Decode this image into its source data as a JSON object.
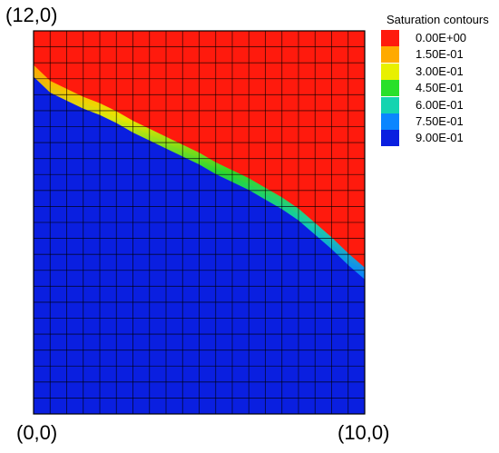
{
  "corner_labels": {
    "top_left": "(12,0)",
    "bottom_left": "(0,0)",
    "bottom_right": "(10,0)"
  },
  "legend": {
    "title": "Saturation contours",
    "entries": [
      {
        "label": "0.00E+00",
        "color": "#ff1a0d"
      },
      {
        "label": "1.50E-01",
        "color": "#ffaa00"
      },
      {
        "label": "3.00E-01",
        "color": "#e8f000"
      },
      {
        "label": "4.50E-01",
        "color": "#29e02a"
      },
      {
        "label": "6.00E-01",
        "color": "#13d4b0"
      },
      {
        "label": "7.50E-01",
        "color": "#0b86ff"
      },
      {
        "label": "9.00E-01",
        "color": "#0a1fe0"
      }
    ]
  },
  "chart_data": {
    "type": "heatmap",
    "xlim": [
      0,
      10
    ],
    "ylim": [
      0,
      12
    ],
    "grid": true,
    "grid_cols": 20,
    "grid_rows": 24,
    "colors": {
      "high": "#0a1fe0",
      "low": "#ff1a0d"
    },
    "front": [
      {
        "x": 0.0,
        "y": 10.75
      },
      {
        "x": 0.5,
        "y": 10.25
      },
      {
        "x": 1.0,
        "y": 10.0
      },
      {
        "x": 1.5,
        "y": 9.75
      },
      {
        "x": 2.0,
        "y": 9.55
      },
      {
        "x": 2.5,
        "y": 9.3
      },
      {
        "x": 3.0,
        "y": 9.0
      },
      {
        "x": 3.5,
        "y": 8.75
      },
      {
        "x": 4.0,
        "y": 8.5
      },
      {
        "x": 4.5,
        "y": 8.25
      },
      {
        "x": 5.0,
        "y": 8.0
      },
      {
        "x": 5.5,
        "y": 7.7
      },
      {
        "x": 6.0,
        "y": 7.45
      },
      {
        "x": 6.5,
        "y": 7.2
      },
      {
        "x": 7.0,
        "y": 6.9
      },
      {
        "x": 7.5,
        "y": 6.6
      },
      {
        "x": 8.0,
        "y": 6.25
      },
      {
        "x": 8.5,
        "y": 5.8
      },
      {
        "x": 9.0,
        "y": 5.35
      },
      {
        "x": 9.5,
        "y": 4.85
      },
      {
        "x": 10.0,
        "y": 4.4
      }
    ]
  }
}
